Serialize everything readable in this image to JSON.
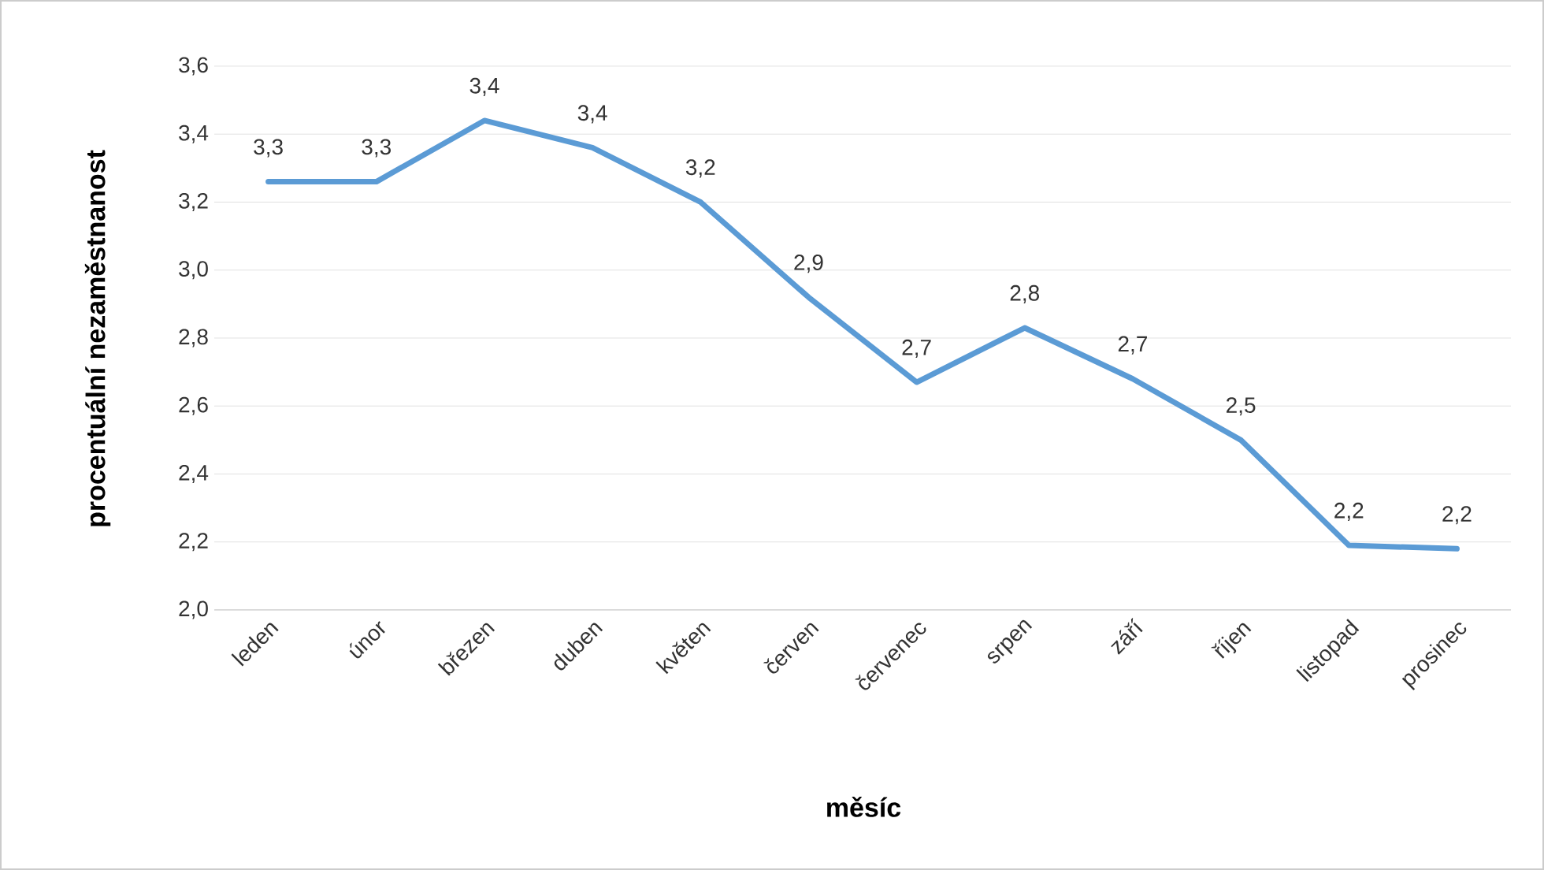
{
  "chart_data": {
    "type": "line",
    "xlabel": "měsíc",
    "ylabel": "procentuální nezaměstnanost",
    "categories": [
      "leden",
      "únor",
      "březen",
      "duben",
      "květen",
      "červen",
      "červenec",
      "srpen",
      "září",
      "říjen",
      "listopad",
      "prosinec"
    ],
    "series": [
      {
        "color": "#5b9bd5",
        "values": [
          3.26,
          3.26,
          3.44,
          3.36,
          3.2,
          2.92,
          2.67,
          2.83,
          2.68,
          2.5,
          2.19,
          2.18
        ],
        "value_labels": [
          "3,3",
          "3,3",
          "3,4",
          "3,4",
          "3,2",
          "2,9",
          "2,7",
          "2,8",
          "2,7",
          "2,5",
          "2,2",
          "2,2"
        ]
      }
    ],
    "ylim": [
      2.0,
      3.6
    ],
    "yticks": [
      {
        "value": 2.0,
        "label": "2,0"
      },
      {
        "value": 2.2,
        "label": "2,2"
      },
      {
        "value": 2.4,
        "label": "2,4"
      },
      {
        "value": 2.6,
        "label": "2,6"
      },
      {
        "value": 2.8,
        "label": "2,8"
      },
      {
        "value": 3.0,
        "label": "3,0"
      },
      {
        "value": 3.2,
        "label": "3,2"
      },
      {
        "value": 3.4,
        "label": "3,4"
      },
      {
        "value": 3.6,
        "label": "3,6"
      }
    ],
    "grid": "y",
    "marker": "none",
    "line_style": "solid"
  }
}
